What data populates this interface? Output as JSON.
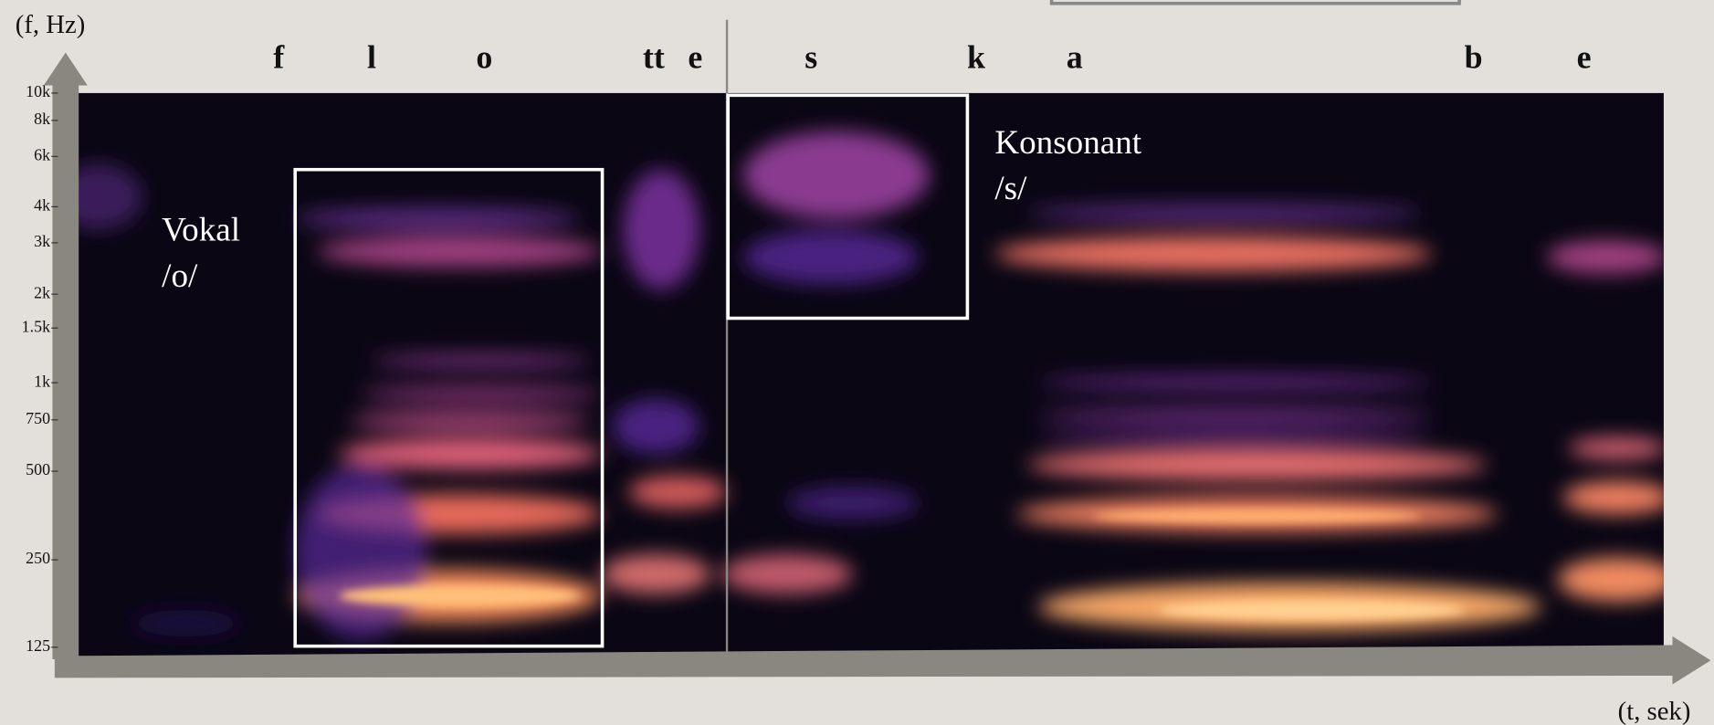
{
  "axes": {
    "y_label": "(f, Hz)",
    "x_label": "(t, sek)",
    "y_ticks": [
      "10k",
      "8k",
      "6k",
      "4k",
      "3k",
      "2k",
      "1.5k",
      "1k",
      "750",
      "500",
      "250",
      "125"
    ]
  },
  "phonemes": [
    "f",
    "l",
    "o",
    "tt",
    "e",
    "s",
    "k",
    "a",
    "b",
    "e"
  ],
  "annotations": [
    {
      "lines": [
        "Vokal",
        "/o/"
      ]
    },
    {
      "lines": [
        "Konsonant",
        "/s/"
      ]
    }
  ]
}
